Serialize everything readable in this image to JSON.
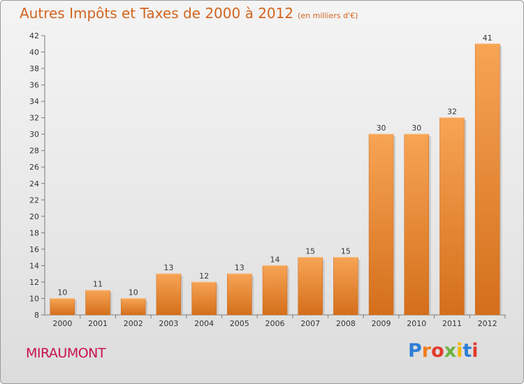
{
  "header": {
    "title": "Autres Impôts et Taxes de 2000 à 2012",
    "subtitle": "(en milliers d'€)"
  },
  "footer": {
    "town": "MIRAUMONT",
    "brand": "Proxiti",
    "brand_colors": [
      "#2e7fd6",
      "#f07d1b",
      "#e43a2c",
      "#6cb33f",
      "#f4b800",
      "#2e7fd6",
      "#e43a2c"
    ]
  },
  "colors": {
    "title": "#d2641e",
    "town": "#c8124f",
    "bar_light": "#f7a455",
    "bar_dark": "#d46f1b"
  },
  "chart_data": {
    "type": "bar",
    "title": "Autres Impôts et Taxes de 2000 à 2012",
    "subtitle": "(en milliers d'€)",
    "categories": [
      "2000",
      "2001",
      "2002",
      "2003",
      "2004",
      "2005",
      "2006",
      "2007",
      "2008",
      "2009",
      "2010",
      "2011",
      "2012"
    ],
    "values": [
      10,
      11,
      10,
      13,
      12,
      13,
      14,
      15,
      15,
      30,
      30,
      32,
      41
    ],
    "ylim": [
      8,
      42
    ],
    "yticks": [
      8,
      10,
      12,
      14,
      16,
      18,
      20,
      22,
      24,
      26,
      28,
      30,
      32,
      34,
      36,
      38,
      40,
      42
    ],
    "xlabel": "",
    "ylabel": "",
    "grid": false,
    "data_labels": true
  }
}
